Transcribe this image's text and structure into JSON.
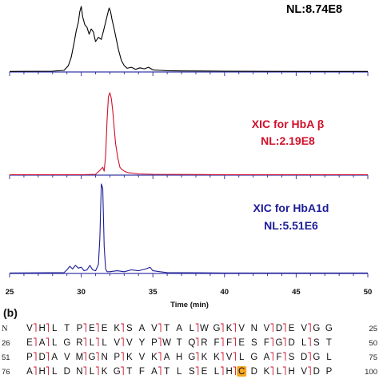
{
  "chart_data": [
    {
      "type": "line",
      "panel": "top",
      "annotation": "NL:8.74E8",
      "color": "#000000",
      "xlim": [
        25,
        50
      ],
      "x": [
        25,
        28.0,
        28.8,
        29.1,
        29.3,
        29.5,
        29.65,
        29.8,
        29.9,
        30.0,
        30.1,
        30.25,
        30.4,
        30.55,
        30.7,
        30.85,
        31.0,
        31.2,
        31.4,
        31.55,
        31.7,
        31.85,
        31.95,
        32.05,
        32.15,
        32.3,
        32.45,
        32.6,
        32.8,
        33.0,
        33.2,
        33.5,
        33.8,
        34.1,
        34.4,
        34.7,
        35.0,
        35.5,
        36.0,
        37.0,
        40.0,
        45.0,
        50.0
      ],
      "y": [
        0.01,
        0.015,
        0.03,
        0.12,
        0.28,
        0.55,
        0.78,
        0.95,
        1.15,
        1.25,
        1.05,
        0.9,
        0.85,
        0.72,
        0.82,
        0.76,
        0.58,
        0.66,
        0.62,
        0.78,
        0.95,
        1.12,
        1.22,
        1.15,
        1.0,
        0.82,
        0.62,
        0.42,
        0.22,
        0.12,
        0.07,
        0.09,
        0.05,
        0.08,
        0.06,
        0.09,
        0.04,
        0.03,
        0.025,
        0.02,
        0.015,
        0.01,
        0.01
      ]
    },
    {
      "type": "line",
      "panel": "middle",
      "annotation_lines": [
        "XIC for HbA β",
        "NL:2.19E8"
      ],
      "color": "#d0102a",
      "xlim": [
        25,
        50
      ],
      "x": [
        25,
        30.0,
        31.0,
        31.3,
        31.5,
        31.6,
        31.7,
        31.8,
        31.9,
        32.0,
        32.1,
        32.2,
        32.3,
        32.4,
        32.55,
        32.7,
        32.85,
        33.0,
        33.3,
        33.6,
        34.0,
        35.0,
        40.0,
        50.0
      ],
      "y": [
        0.005,
        0.005,
        0.01,
        0.06,
        0.1,
        0.05,
        0.25,
        0.7,
        1.0,
        1.05,
        0.98,
        0.82,
        0.6,
        0.4,
        0.22,
        0.1,
        0.07,
        0.05,
        0.03,
        0.025,
        0.015,
        0.01,
        0.005,
        0.005
      ]
    },
    {
      "type": "line",
      "panel": "bottom",
      "annotation_lines": [
        "XIC for HbA1d",
        "NL:5.51E6"
      ],
      "color": "#1c1c9a",
      "xlabel": "Time (min)",
      "xlim": [
        25,
        50
      ],
      "xticks": [
        25,
        30,
        35,
        40,
        45,
        50
      ],
      "x": [
        25,
        28.8,
        29.0,
        29.2,
        29.4,
        29.6,
        29.8,
        30.0,
        30.2,
        30.4,
        30.6,
        30.8,
        31.0,
        31.2,
        31.3,
        31.4,
        31.5,
        31.6,
        31.7,
        31.8,
        32.0,
        32.5,
        33.0,
        33.5,
        34.0,
        34.5,
        34.8,
        35.0,
        35.5,
        36.0,
        40.0,
        50.0
      ],
      "y": [
        0.005,
        0.01,
        0.04,
        0.08,
        0.05,
        0.09,
        0.06,
        0.07,
        0.03,
        0.04,
        0.09,
        0.04,
        0.03,
        0.1,
        0.4,
        1.0,
        0.95,
        0.3,
        0.05,
        0.02,
        0.02,
        0.03,
        0.02,
        0.04,
        0.03,
        0.05,
        0.07,
        0.03,
        0.02,
        0.01,
        0.005,
        0.005
      ]
    }
  ],
  "panel_b": {
    "label": "(b)",
    "rows": [
      {
        "start": "N",
        "end": "25",
        "residues": [
          "V",
          "H",
          "L",
          "T",
          "P",
          "E",
          "E",
          "K",
          "S",
          "A",
          "V",
          "T",
          "A",
          "L",
          "W",
          "G",
          "K",
          "V",
          "N",
          "V",
          "D",
          "E",
          "V",
          "G",
          "G"
        ]
      },
      {
        "start": "26",
        "end": "50",
        "residues": [
          "E",
          "A",
          "L",
          "G",
          "R",
          "L",
          "L",
          "V",
          "V",
          "Y",
          "P",
          "W",
          "T",
          "Q",
          "R",
          "F",
          "F",
          "E",
          "S",
          "F",
          "G",
          "D",
          "L",
          "S",
          "T"
        ]
      },
      {
        "start": "51",
        "end": "75",
        "residues": [
          "P",
          "D",
          "A",
          "V",
          "M",
          "G",
          "N",
          "P",
          "K",
          "V",
          "K",
          "A",
          "H",
          "G",
          "K",
          "K",
          "V",
          "L",
          "G",
          "A",
          "F",
          "S",
          "D",
          "G",
          "L"
        ]
      },
      {
        "start": "76",
        "end": "100",
        "residues": [
          "A",
          "H",
          "L",
          "D",
          "N",
          "L",
          "K",
          "G",
          "T",
          "F",
          "A",
          "T",
          "L",
          "S",
          "E",
          "L",
          "H",
          "C",
          "D",
          "K",
          "L",
          "H",
          "V",
          "D",
          "P"
        ]
      }
    ],
    "highlight": {
      "row": 3,
      "index": 17,
      "color": "#f5a623"
    },
    "mark_color": "#d0102a"
  }
}
